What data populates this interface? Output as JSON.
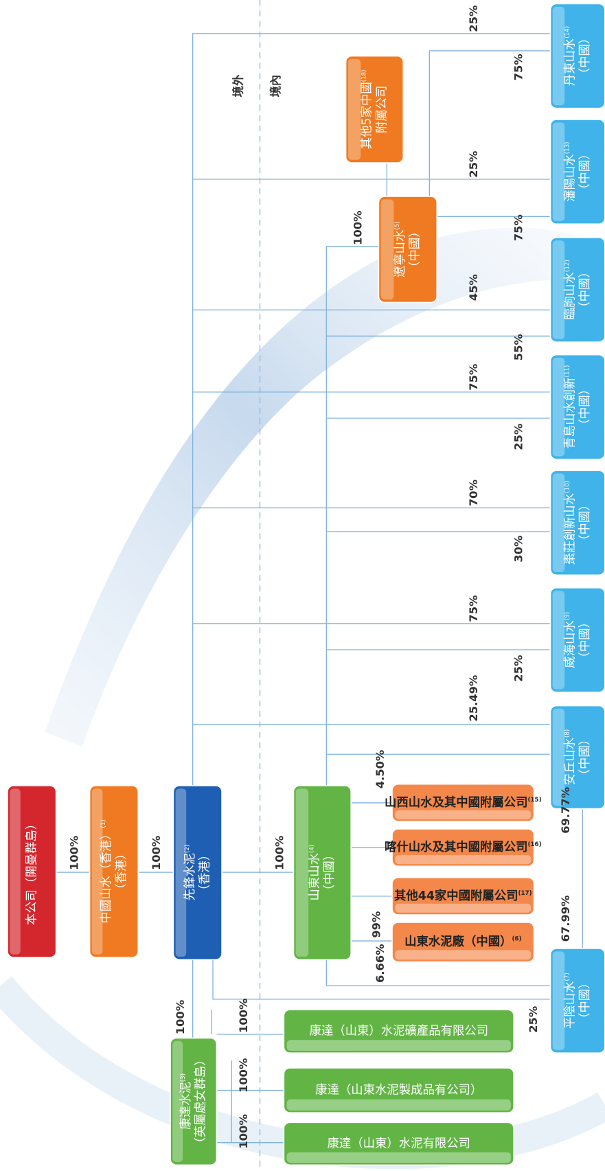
{
  "regions": {
    "offshore": "境外",
    "onshore": "境內"
  },
  "nodes": [
    {
      "lines": [
        "本公司（開曼群島）"
      ]
    },
    {
      "lines": [
        "中國山水（香港）",
        "（香港）"
      ],
      "note": "(1)"
    },
    {
      "lines": [
        "先鋒水泥",
        "（香港）"
      ],
      "note": "(2)"
    },
    {
      "lines": [
        "山東山水",
        "（中國）"
      ],
      "note": "(4)"
    },
    {
      "lines": [
        "山西山水及其中國附屬公司"
      ],
      "note": "(15)"
    },
    {
      "lines": [
        "喀什山水及其中國附屬公司"
      ],
      "note": "(16)"
    },
    {
      "lines": [
        "其他44家中國附屬公司"
      ],
      "note": "(17)"
    },
    {
      "lines": [
        "山東水泥廠（中國）"
      ],
      "note": "(6)"
    },
    {
      "lines": [
        "康達水泥",
        "（英屬處女群島）"
      ],
      "note": "(3)"
    },
    {
      "lines": [
        "康達（山東）水泥礦產品有限公司"
      ]
    },
    {
      "lines": [
        "康達（山東水泥製成品有公司）"
      ]
    },
    {
      "lines": [
        "康達（山東）水泥有限公司"
      ]
    },
    {
      "lines": [
        "平陰山水",
        "（中國）"
      ],
      "note": "(7)"
    },
    {
      "lines": [
        "安丘山水",
        "（中國）"
      ],
      "note": "(8)"
    },
    {
      "lines": [
        "威海山水",
        "（中國）"
      ],
      "note": "(9)"
    },
    {
      "lines": [
        "棗莊創新山水",
        "（中國）"
      ],
      "note": "(10)"
    },
    {
      "lines": [
        "青島山水創新",
        "（中國）"
      ],
      "note": "(11)"
    },
    {
      "lines": [
        "臨朐山水",
        "（中國）"
      ],
      "note": "(12)"
    },
    {
      "lines": [
        "瀋陽山水",
        "（中國）"
      ],
      "note": "(13)"
    },
    {
      "lines": [
        "丹東山水",
        "（中國）"
      ],
      "note": "(14)"
    },
    {
      "lines": [
        "遼寧山水",
        "（中國）"
      ],
      "note": "(5)"
    },
    {
      "lines": [
        "其他5家中國",
        "附屬公司"
      ],
      "note": "(18)"
    }
  ],
  "percentages": [
    "100%",
    "100%",
    "100%",
    "100%",
    "100%",
    "100%",
    "100%",
    "25%",
    "67.99%",
    "69.77%",
    "6.66%",
    "99%",
    "4.50%",
    "25.49%",
    "25%",
    "75%",
    "30%",
    "70%",
    "25%",
    "75%",
    "55%",
    "45%",
    "75%",
    "25%",
    "75%",
    "25%",
    "100%"
  ]
}
